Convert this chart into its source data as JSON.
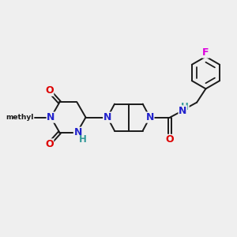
{
  "background_color": "#efefef",
  "bond_color": "#1a1a1a",
  "bond_width": 1.4,
  "atom_colors": {
    "N": "#2222cc",
    "O": "#dd0000",
    "F": "#dd00dd",
    "H": "#339999"
  },
  "font_size": 8.5
}
